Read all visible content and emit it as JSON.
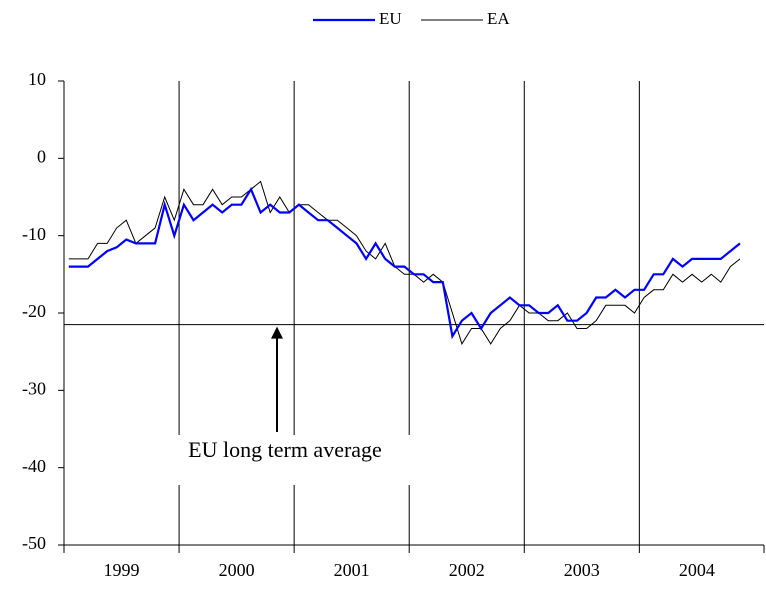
{
  "chart_data": {
    "type": "line",
    "categories": [
      null,
      null,
      null,
      null,
      null,
      null,
      "1999",
      null,
      null,
      null,
      null,
      null,
      null,
      null,
      null,
      null,
      null,
      null,
      "2000",
      null,
      null,
      null,
      null,
      null,
      null,
      null,
      null,
      null,
      null,
      null,
      "2001",
      null,
      null,
      null,
      null,
      null,
      null,
      null,
      null,
      null,
      null,
      null,
      "2002",
      null,
      null,
      null,
      null,
      null,
      null,
      null,
      null,
      null,
      null,
      null,
      "2003",
      null,
      null,
      null,
      null,
      null,
      null,
      null,
      null,
      null,
      null,
      null,
      "2004",
      null,
      null,
      null,
      null
    ],
    "series": [
      {
        "name": "EU",
        "color": "#0000ff",
        "values": [
          -14,
          -14,
          -14,
          -13,
          -12,
          -11.5,
          -10.5,
          -11,
          -11,
          -11,
          -6,
          -10,
          -6,
          -8,
          -7,
          -6,
          -7,
          -6,
          -6,
          -4,
          -7,
          -6,
          -7,
          -7,
          -6,
          -7,
          -8,
          -8,
          -9,
          -10,
          -11,
          -13,
          -11,
          -13,
          -14,
          -14,
          -15,
          -15,
          -16,
          -16,
          -23,
          -21,
          -20,
          -22,
          -20,
          -19,
          -18,
          -19,
          -19,
          -20,
          -20,
          -19,
          -21,
          -21,
          -20,
          -18,
          -18,
          -17,
          -18,
          -17,
          -17,
          -15,
          -15,
          -13,
          -14,
          -13,
          -13,
          -13,
          -13,
          -12,
          -11
        ]
      },
      {
        "name": "EA",
        "color": "#000000",
        "values": [
          -13,
          -13,
          -13,
          -11,
          -11,
          -9,
          -8,
          -11,
          -10,
          -9,
          -5,
          -8,
          -4,
          -6,
          -6,
          -4,
          -6,
          -5,
          -5,
          -4,
          -3,
          -7,
          -5,
          -7,
          -6,
          -6,
          -7,
          -8,
          -8,
          -9,
          -10,
          -12,
          -13,
          -11,
          -14,
          -15,
          -15,
          -16,
          -15,
          -16,
          -20,
          -24,
          -22,
          -22,
          -24,
          -22,
          -21,
          -19,
          -20,
          -20,
          -21,
          -21,
          -20,
          -22,
          -22,
          -21,
          -19,
          -19,
          -19,
          -20,
          -18,
          -17,
          -17,
          -15,
          -16,
          -15,
          -16,
          -15,
          -16,
          -14,
          -13
        ]
      }
    ],
    "reference_line": {
      "value": -21.5,
      "label": "EU long term average"
    },
    "ylim": [
      -50,
      10
    ],
    "yticks": [
      -50,
      -40,
      -30,
      -20,
      -10,
      0,
      10
    ],
    "legend": "top"
  }
}
